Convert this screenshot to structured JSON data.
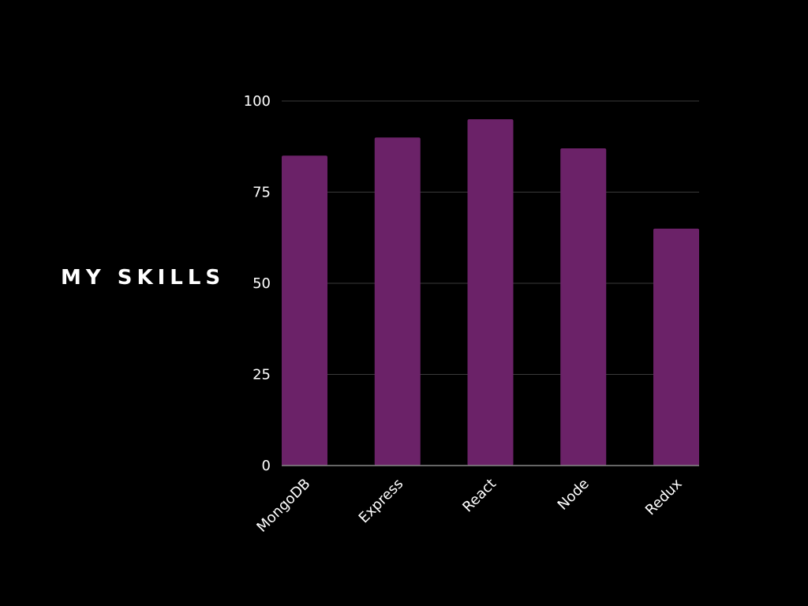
{
  "title": "MY SKILLS",
  "colors": {
    "background": "#000000",
    "bar": "#6b2268",
    "grid": "#3a3a3a",
    "axis": "#888888",
    "text": "#ffffff"
  },
  "chart_data": {
    "type": "bar",
    "categories": [
      "MongoDB",
      "Express",
      "React",
      "Node",
      "Redux"
    ],
    "values": [
      85,
      90,
      95,
      87,
      65
    ],
    "ylim": [
      0,
      100
    ],
    "yticks": [
      0,
      25,
      50,
      75,
      100
    ],
    "grid": true,
    "legend": "none"
  }
}
